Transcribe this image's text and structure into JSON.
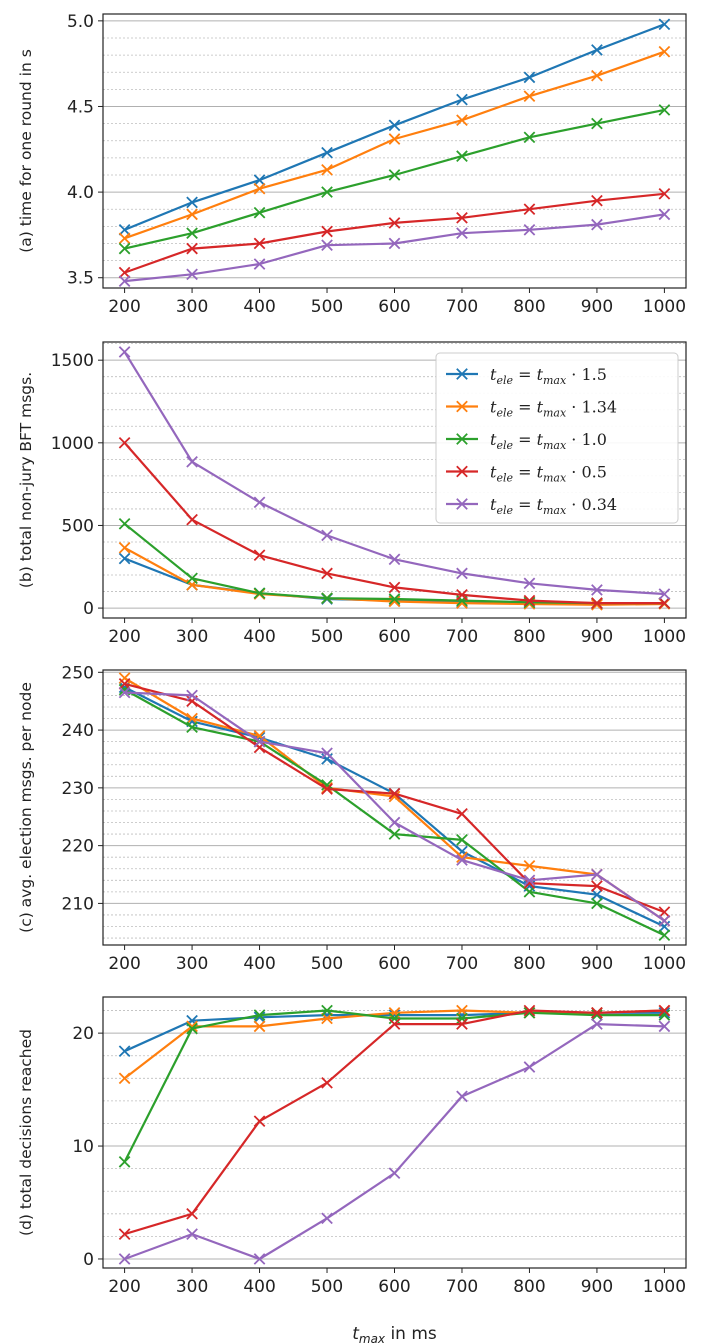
{
  "chart_data": [
    {
      "type": "line",
      "ylabel": "(a) time for one round in s",
      "x": [
        200,
        300,
        400,
        500,
        600,
        700,
        800,
        900,
        1000
      ],
      "x_ticks": [
        "200",
        "300",
        "400",
        "500",
        "600",
        "700",
        "800",
        "900",
        "1000"
      ],
      "ylim": [
        3.44,
        5.04
      ],
      "y_ticks": [
        "3.5",
        "4.0",
        "4.5",
        "5.0"
      ],
      "y_tick_values": [
        3.5,
        4.0,
        4.5,
        5.0
      ],
      "minor_step": 0.1,
      "grid": true,
      "series": [
        {
          "name": "1.5",
          "color": "#1f77b4",
          "values": [
            3.78,
            3.94,
            4.07,
            4.23,
            4.39,
            4.54,
            4.67,
            4.83,
            4.98
          ]
        },
        {
          "name": "1.34",
          "color": "#ff7f0e",
          "values": [
            3.73,
            3.87,
            4.02,
            4.13,
            4.31,
            4.42,
            4.56,
            4.68,
            4.82
          ]
        },
        {
          "name": "1.0",
          "color": "#2ca02c",
          "values": [
            3.67,
            3.76,
            3.88,
            4.0,
            4.1,
            4.21,
            4.32,
            4.4,
            4.48
          ]
        },
        {
          "name": "0.5",
          "color": "#d62728",
          "values": [
            3.53,
            3.67,
            3.7,
            3.77,
            3.82,
            3.85,
            3.9,
            3.95,
            3.99
          ]
        },
        {
          "name": "0.34",
          "color": "#9467bd",
          "values": [
            3.48,
            3.52,
            3.58,
            3.69,
            3.7,
            3.76,
            3.78,
            3.81,
            3.87
          ]
        }
      ]
    },
    {
      "type": "line",
      "ylabel": "(b) total non-jury BFT msgs.",
      "x": [
        200,
        300,
        400,
        500,
        600,
        700,
        800,
        900,
        1000
      ],
      "x_ticks": [
        "200",
        "300",
        "400",
        "500",
        "600",
        "700",
        "800",
        "900",
        "1000"
      ],
      "ylim": [
        -60,
        1610
      ],
      "y_ticks": [
        "0",
        "500",
        "1000",
        "1500"
      ],
      "y_tick_values": [
        0,
        500,
        1000,
        1500
      ],
      "minor_step": 100,
      "grid": true,
      "legend": "top-right",
      "legend_prefix": {
        "lhs": "t",
        "lhs_sub": "ele",
        "eq": " = ",
        "rhs": "t",
        "rhs_sub": "max",
        "dot": " · "
      },
      "series": [
        {
          "name": "1.5",
          "color": "#1f77b4",
          "values": [
            300,
            140,
            90,
            55,
            45,
            35,
            30,
            25,
            30
          ]
        },
        {
          "name": "1.34",
          "color": "#ff7f0e",
          "values": [
            365,
            140,
            85,
            60,
            40,
            30,
            25,
            20,
            25
          ]
        },
        {
          "name": "1.0",
          "color": "#2ca02c",
          "values": [
            510,
            180,
            90,
            60,
            55,
            45,
            35,
            30,
            30
          ]
        },
        {
          "name": "0.5",
          "color": "#d62728",
          "values": [
            1000,
            535,
            320,
            210,
            125,
            80,
            45,
            30,
            30
          ]
        },
        {
          "name": "0.34",
          "color": "#9467bd",
          "values": [
            1550,
            885,
            640,
            440,
            295,
            210,
            150,
            110,
            85
          ]
        }
      ]
    },
    {
      "type": "line",
      "ylabel": "(c) avg. election msgs. per node",
      "x": [
        200,
        300,
        400,
        500,
        600,
        700,
        800,
        900,
        1000
      ],
      "x_ticks": [
        "200",
        "300",
        "400",
        "500",
        "600",
        "700",
        "800",
        "900",
        "1000"
      ],
      "ylim": [
        202.8,
        250.4
      ],
      "y_ticks": [
        "210",
        "220",
        "230",
        "240",
        "250"
      ],
      "y_tick_values": [
        210,
        220,
        230,
        240,
        250
      ],
      "minor_step": 2,
      "grid": true,
      "series": [
        {
          "name": "1.5",
          "color": "#1f77b4",
          "values": [
            247.4,
            241.5,
            238.7,
            235.0,
            229.0,
            219.0,
            213.0,
            211.5,
            206.0
          ]
        },
        {
          "name": "1.34",
          "color": "#ff7f0e",
          "values": [
            249.0,
            242.0,
            239.0,
            230.0,
            228.5,
            218.0,
            216.5,
            215.0,
            207.0
          ]
        },
        {
          "name": "1.0",
          "color": "#2ca02c",
          "values": [
            247.0,
            240.5,
            238.0,
            230.5,
            222.0,
            221.0,
            212.0,
            210.0,
            204.5
          ]
        },
        {
          "name": "0.5",
          "color": "#d62728",
          "values": [
            248.0,
            245.0,
            237.0,
            229.8,
            229.0,
            225.5,
            213.5,
            213.0,
            208.5
          ]
        },
        {
          "name": "0.34",
          "color": "#9467bd",
          "values": [
            246.5,
            246.0,
            238.0,
            236.0,
            224.0,
            217.5,
            214.0,
            215.0,
            207.0
          ]
        }
      ]
    },
    {
      "type": "line",
      "ylabel": "(d) total decisions reached",
      "xlabel": "t_max in ms",
      "xlabel_parts": {
        "base": "t",
        "sub": "max",
        "rest": " in ms"
      },
      "x": [
        200,
        300,
        400,
        500,
        600,
        700,
        800,
        900,
        1000
      ],
      "x_ticks": [
        "200",
        "300",
        "400",
        "500",
        "600",
        "700",
        "800",
        "900",
        "1000"
      ],
      "ylim": [
        -0.8,
        23.2
      ],
      "y_ticks": [
        "0",
        "10",
        "20"
      ],
      "y_tick_values": [
        0,
        10,
        20
      ],
      "minor_step": 2,
      "grid": true,
      "series": [
        {
          "name": "1.5",
          "color": "#1f77b4",
          "values": [
            18.4,
            21.1,
            21.4,
            21.6,
            21.6,
            21.6,
            21.8,
            21.8,
            21.8
          ]
        },
        {
          "name": "1.34",
          "color": "#ff7f0e",
          "values": [
            16.0,
            20.6,
            20.6,
            21.3,
            21.8,
            22.0,
            21.8,
            21.8,
            22.0
          ]
        },
        {
          "name": "1.0",
          "color": "#2ca02c",
          "values": [
            8.6,
            20.4,
            21.6,
            22.0,
            21.3,
            21.3,
            21.8,
            21.6,
            21.6
          ]
        },
        {
          "name": "0.5",
          "color": "#d62728",
          "values": [
            2.2,
            4.0,
            12.2,
            15.6,
            20.8,
            20.8,
            22.0,
            21.8,
            22.0
          ]
        },
        {
          "name": "0.34",
          "color": "#9467bd",
          "values": [
            0.0,
            2.2,
            0.0,
            3.6,
            7.6,
            14.4,
            17.0,
            20.8,
            20.6
          ]
        }
      ]
    }
  ]
}
